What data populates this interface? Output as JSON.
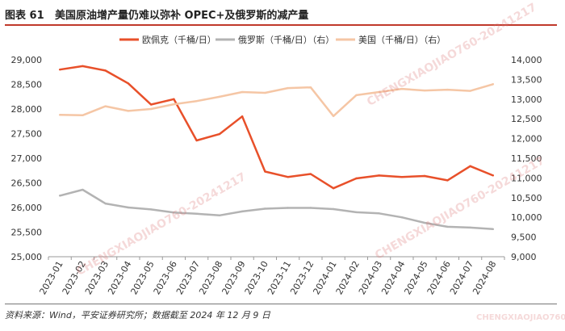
{
  "header": {
    "figure_no": "图表 61",
    "title": "美国原油增产量仍难以弥补 OPEC+及俄罗斯的减产量"
  },
  "source": "资料来源：Wind，平安证券研究所；数据截至 2024 年 12 月 9 日",
  "watermarks": [
    "CHENGXIAOJIAO760-20241217",
    "CHENGXIAOJIAO760-20241217",
    "CHENGXIAOJIAO760-20241217",
    "CHENGXIAOJIAO760"
  ],
  "colors": {
    "opec": "#e8502a",
    "russia": "#b3b3b3",
    "us": "#f5c6a5",
    "title_rule": "#c0392b"
  },
  "chart_data": {
    "type": "line",
    "categories": [
      "2023-01",
      "2023-02",
      "2023-03",
      "2023-04",
      "2023-05",
      "2023-06",
      "2023-07",
      "2023-08",
      "2023-09",
      "2023-10",
      "2023-11",
      "2023-12",
      "2024-01",
      "2024-02",
      "2024-03",
      "2024-04",
      "2024-05",
      "2024-06",
      "2024-07",
      "2024-08"
    ],
    "left_axis": {
      "range": [
        25000,
        29000
      ],
      "ticks": [
        "25,000",
        "25,500",
        "26,000",
        "26,500",
        "27,000",
        "27,500",
        "28,000",
        "28,500",
        "29,000"
      ]
    },
    "right_axis": {
      "range": [
        9000,
        14000
      ],
      "ticks": [
        "9,000",
        "9,500",
        "10,000",
        "10,500",
        "11,000",
        "11,500",
        "12,000",
        "12,500",
        "13,000",
        "13,500",
        "14,000"
      ]
    },
    "legend_position": "top",
    "series": [
      {
        "name": "欧佩克（千桶/日）",
        "axis": "left",
        "color": "#e8502a",
        "values": [
          28800,
          28870,
          28780,
          28520,
          28090,
          28200,
          27360,
          27490,
          27850,
          26730,
          26620,
          26680,
          26390,
          26590,
          26650,
          26620,
          26640,
          26550,
          26840,
          26650
        ]
      },
      {
        "name": "俄罗斯（千桶/日）（右）",
        "axis": "right",
        "color": "#b3b3b3",
        "values": [
          10550,
          10700,
          10350,
          10250,
          10200,
          10120,
          10090,
          10050,
          10150,
          10220,
          10240,
          10240,
          10210,
          10130,
          10100,
          10000,
          9860,
          9760,
          9740,
          9700
        ]
      },
      {
        "name": "美国（千桶/日）（右）",
        "axis": "right",
        "color": "#f5c6a5",
        "values": [
          12600,
          12590,
          12820,
          12700,
          12750,
          12870,
          12950,
          13060,
          13180,
          13160,
          13280,
          13300,
          12570,
          13100,
          13180,
          13260,
          13220,
          13240,
          13210,
          13380
        ]
      }
    ]
  }
}
